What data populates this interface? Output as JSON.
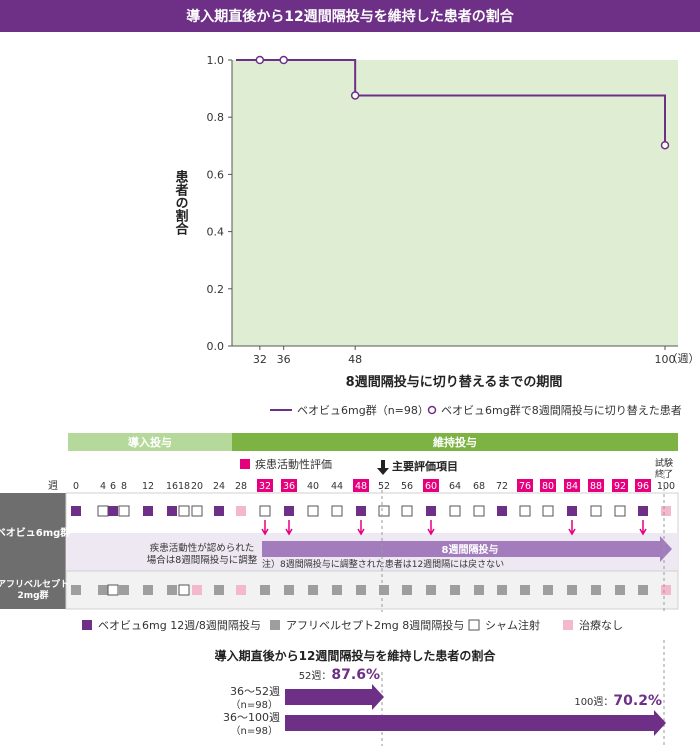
{
  "title": "導入期直後から12週間隔投与を維持した患者の割合",
  "chart_data": {
    "type": "line",
    "title": "導入期直後から12週間隔投与を維持した患者の割合",
    "xlabel": "8週間隔投与に切り替えるまでの期間",
    "ylabel": "患者の割合",
    "x_unit": "（週）",
    "x_ticks": [
      "32",
      "36",
      "48",
      "100"
    ],
    "y_ticks": [
      "0.0",
      "0.2",
      "0.4",
      "0.6",
      "0.8",
      "1.0"
    ],
    "xlim": [
      20,
      104
    ],
    "ylim": [
      0,
      1.0
    ],
    "series": [
      {
        "name": "ベオビュ6mg群（n=98）",
        "step": true,
        "x": [
          28,
          48,
          48,
          100,
          100
        ],
        "y": [
          1.0,
          1.0,
          0.876,
          0.876,
          0.702
        ]
      }
    ],
    "markers": {
      "name": "ベオビュ6mg群で8週間隔投与に切り替えた患者",
      "x": [
        32,
        36,
        48,
        100
      ],
      "y": [
        1.0,
        1.0,
        0.876,
        0.702
      ]
    },
    "shaded_region_x": [
      28,
      100
    ],
    "colors": {
      "line": "#6e2f87",
      "shade": "#dfeed2"
    }
  },
  "schedule": {
    "phase_induction": "導入投与",
    "phase_maintenance": "維持投与",
    "week_label": "週",
    "weeks": [
      "0",
      "4",
      "6",
      "8",
      "12",
      "16",
      "18",
      "20",
      "24",
      "28",
      "32",
      "36",
      "40",
      "44",
      "48",
      "52",
      "56",
      "60",
      "64",
      "68",
      "72",
      "76",
      "80",
      "84",
      "88",
      "92",
      "96",
      "100"
    ],
    "assessment_weeks": [
      "32",
      "36",
      "48",
      "60",
      "76",
      "80",
      "84",
      "88",
      "92",
      "96"
    ],
    "assessment_legend": "疾患活動性評価",
    "primary_endpoint": "主要評価項目",
    "end_of_study": "試験\n終了",
    "row_beovu": "ベオビュ6mg群",
    "row_aflibercept": "アフリベルセプト\n2mg群",
    "beovu_cells": [
      "P",
      "S",
      "P",
      "S",
      "P",
      "P",
      "S",
      "S",
      "P",
      "N",
      "S",
      "P",
      "S",
      "S",
      "P",
      "S",
      "S",
      "P",
      "S",
      "S",
      "P",
      "S",
      "S",
      "P",
      "S",
      "S",
      "P",
      "N"
    ],
    "aflib_cells": [
      "G",
      "G",
      "S",
      "G",
      "G",
      "G",
      "S",
      "N",
      "G",
      "N",
      "G",
      "G",
      "G",
      "G",
      "G",
      "G",
      "G",
      "G",
      "G",
      "G",
      "G",
      "G",
      "G",
      "G",
      "G",
      "G",
      "G",
      "N"
    ],
    "note_adjust": "疾患活動性が認められた\n場合は8週間隔投与に調整",
    "arrow_label": "8週間隔投与",
    "note_footer": "注）8週間隔投与に調整された患者は12週間隔には戻さない",
    "legend": {
      "purple": "ベオビュ6mg 12週/8週間隔投与",
      "gray": "アフリベルセプト2mg 8週間隔投与",
      "sham": "シャム注射",
      "none": "治療なし"
    },
    "colors": {
      "purple": "#6e2f87",
      "gray": "#9e9e9e",
      "pink": "#f4b8cc",
      "assess": "#e6007e",
      "green": "#7cb342"
    }
  },
  "summary": {
    "title": "導入期直後から12週間隔投与を維持した患者の割合",
    "rows": [
      {
        "label": "36～52週",
        "n": "（n=98）",
        "value_prefix": "52週：",
        "value": "87.6%",
        "fraction": 0.876
      },
      {
        "label": "36～100週",
        "n": "（n=98）",
        "value_prefix": "100週：",
        "value": "70.2%",
        "fraction": 0.702
      }
    ]
  }
}
